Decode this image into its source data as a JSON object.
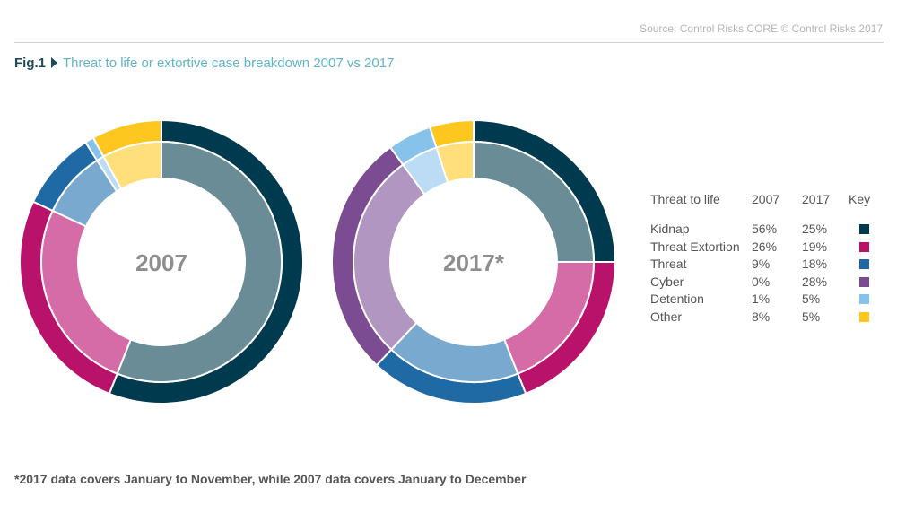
{
  "source": "Source: Control Risks CORE © Control Risks 2017",
  "figure": {
    "label": "Fig.1",
    "title": "Threat to life or extortive case breakdown 2007 vs 2017"
  },
  "footnote": "*2017 data covers January to November, while 2007 data covers January to December",
  "chart_data": {
    "type": "pie",
    "variant": "donut",
    "categories": [
      "Kidnap",
      "Threat Extortion",
      "Threat",
      "Cyber",
      "Detention",
      "Other"
    ],
    "colors": {
      "outer": [
        "#003a4f",
        "#b8126b",
        "#1f6aa5",
        "#7b4c91",
        "#87c2eb",
        "#fdc71f"
      ],
      "inner": [
        "#698c96",
        "#d66ca7",
        "#7aa9cf",
        "#b096c0",
        "#bcdcf5",
        "#fedf7b"
      ]
    },
    "series": [
      {
        "name": "2007",
        "center_label": "2007",
        "values": [
          56,
          26,
          9,
          0,
          1,
          8
        ]
      },
      {
        "name": "2017",
        "center_label": "2017*",
        "values": [
          25,
          19,
          18,
          28,
          5,
          5
        ]
      }
    ],
    "table": {
      "headers": [
        "Threat to life",
        "2007",
        "2017",
        "Key"
      ],
      "rows": [
        {
          "name": "Kidnap",
          "y2007": "56%",
          "y2017": "25%"
        },
        {
          "name": "Threat Extortion",
          "y2007": "26%",
          "y2017": "19%"
        },
        {
          "name": "Threat",
          "y2007": "9%",
          "y2017": "18%"
        },
        {
          "name": "Cyber",
          "y2007": "0%",
          "y2017": "28%"
        },
        {
          "name": "Detention",
          "y2007": "1%",
          "y2017": "5%"
        },
        {
          "name": "Other",
          "y2007": "8%",
          "y2017": "5%"
        }
      ]
    }
  }
}
